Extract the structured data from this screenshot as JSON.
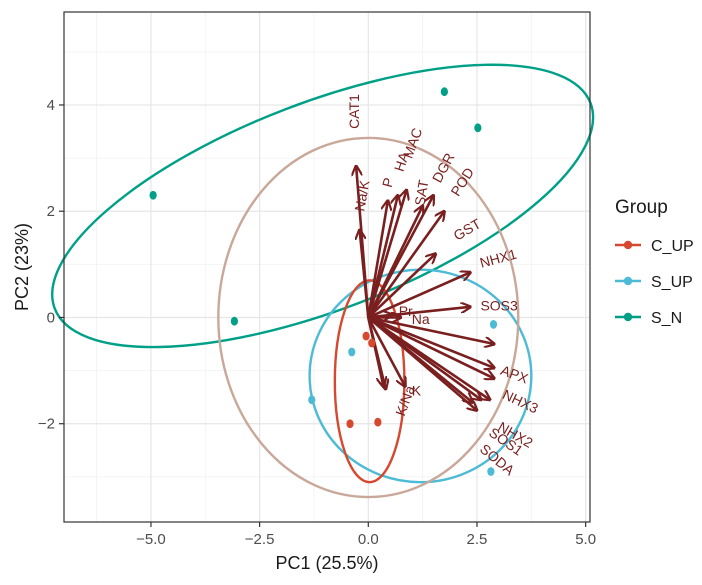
{
  "chart_data": {
    "type": "scatter",
    "xlabel": "PC1 (25.5%)",
    "ylabel": "PC2 (23%)",
    "xlim": [
      -7,
      5.1
    ],
    "ylim": [
      -3.85,
      5.75
    ],
    "x_ticks": [
      -5.0,
      -2.5,
      0.0,
      2.5,
      5.0
    ],
    "x_tick_labels": [
      "-5.0",
      "-2.5",
      "0.0",
      "2.5",
      "5.0"
    ],
    "y_ticks": [
      -2,
      0,
      2,
      4
    ],
    "y_tick_labels": [
      "-2",
      "0",
      "2",
      "4"
    ],
    "grid": true,
    "legend": {
      "title": "Group",
      "position": "right",
      "entries": [
        {
          "label": "C_UP",
          "color": "#D6492F"
        },
        {
          "label": "S_UP",
          "color": "#4DBBD5"
        },
        {
          "label": "S_N",
          "color": "#00A087"
        }
      ]
    },
    "series": [
      {
        "name": "C_UP",
        "color": "#D6492F",
        "points": [
          [
            -0.05,
            -0.35
          ],
          [
            0.08,
            -0.48
          ],
          [
            -0.42,
            -2.0
          ],
          [
            0.22,
            -1.97
          ]
        ]
      },
      {
        "name": "S_UP",
        "color": "#4DBBD5",
        "points": [
          [
            -0.38,
            -0.65
          ],
          [
            -1.3,
            -1.55
          ],
          [
            2.88,
            -0.13
          ],
          [
            2.82,
            -2.9
          ]
        ]
      },
      {
        "name": "S_N",
        "color": "#00A087",
        "points": [
          [
            -4.95,
            2.3
          ],
          [
            -3.08,
            -0.07
          ],
          [
            1.75,
            4.25
          ],
          [
            2.52,
            3.57
          ]
        ]
      }
    ],
    "ellipses": [
      {
        "group": "S_N",
        "color": "#00A087",
        "cx": -1.05,
        "cy": 2.1,
        "rx": 6.6,
        "ry": 1.95,
        "angle_deg": 21
      },
      {
        "group": "S_UP",
        "color": "#4DBBD5",
        "cx": 1.2,
        "cy": -1.1,
        "rx": 2.55,
        "ry": 2.0,
        "angle_deg": 0
      },
      {
        "group": "C_UP",
        "color": "#D6492F",
        "cx": 0.03,
        "cy": -1.2,
        "rx": 0.8,
        "ry": 1.9,
        "angle_deg": 0
      },
      {
        "group": "correlation circle",
        "color": "#C9A89A",
        "cx": 0.0,
        "cy": 0.0,
        "rx": 3.45,
        "ry": 3.38,
        "angle_deg": 0
      }
    ],
    "loadings": [
      {
        "label": "CAT1",
        "x": -0.28,
        "y": 2.85,
        "lx": -0.3,
        "ly": 3.55,
        "rot": 90
      },
      {
        "label": "Na/K",
        "x": -0.2,
        "y": 1.65,
        "lx": -0.18,
        "ly": 2.0,
        "rot": 80
      },
      {
        "label": "P",
        "x": 0.45,
        "y": 2.2,
        "lx": 0.45,
        "ly": 2.45,
        "rot": 75
      },
      {
        "label": "HA",
        "x": 0.68,
        "y": 2.3,
        "lx": 0.72,
        "ly": 2.75,
        "rot": 72
      },
      {
        "label": "MAC",
        "x": 0.88,
        "y": 2.4,
        "lx": 0.92,
        "ly": 3.0,
        "rot": 70
      },
      {
        "label": "DGR",
        "x": 1.5,
        "y": 2.3,
        "lx": 1.58,
        "ly": 2.55,
        "rot": 62
      },
      {
        "label": "POD",
        "x": 1.75,
        "y": 2.0,
        "lx": 2.0,
        "ly": 2.3,
        "rot": 58
      },
      {
        "label": "SAT",
        "x": 1.25,
        "y": 2.1,
        "lx": 1.2,
        "ly": 2.1,
        "rot": 80
      },
      {
        "label": "GST",
        "x": 1.55,
        "y": 1.2,
        "lx": 2.0,
        "ly": 1.5,
        "rot": 30
      },
      {
        "label": "NHX1",
        "x": 2.35,
        "y": 0.85,
        "lx": 2.58,
        "ly": 1.0,
        "rot": 15
      },
      {
        "label": "SOS3",
        "x": 2.35,
        "y": 0.2,
        "lx": 2.58,
        "ly": 0.2,
        "rot": 0
      },
      {
        "label": "Pr",
        "x": 0.55,
        "y": 0.05,
        "lx": 0.7,
        "ly": 0.1,
        "rot": 0
      },
      {
        "label": "Na",
        "x": 0.75,
        "y": 0.0,
        "lx": 1.0,
        "ly": -0.05,
        "rot": 0
      },
      {
        "label": "APX",
        "x": 2.9,
        "y": -0.95,
        "lx": 3.05,
        "ly": -1.0,
        "rot": -20
      },
      {
        "label": "NHX3",
        "x": 2.9,
        "y": -1.15,
        "lx": 3.1,
        "ly": -1.45,
        "rot": -25
      },
      {
        "label": "NHX2",
        "x": 2.8,
        "y": -1.55,
        "lx": 3.0,
        "ly": -2.05,
        "rot": -30
      },
      {
        "label": "SOS1",
        "x": 2.6,
        "y": -1.55,
        "lx": 2.8,
        "ly": -2.15,
        "rot": -35
      },
      {
        "label": "SODA",
        "x": 2.4,
        "y": -1.6,
        "lx": 2.6,
        "ly": -2.45,
        "rot": -40
      },
      {
        "label": "K",
        "x": 0.85,
        "y": -1.3,
        "lx": 1.0,
        "ly": -1.4,
        "rot": 0
      },
      {
        "label": "K/Na",
        "x": 0.35,
        "y": -1.3,
        "lx": 0.75,
        "ly": -1.85,
        "rot": 70
      }
    ],
    "extra_arrows": [
      {
        "x": 0.4,
        "y": -1.35
      },
      {
        "x": 2.5,
        "y": -1.75
      },
      {
        "x": 2.9,
        "y": -0.5
      }
    ],
    "arrow_color": "#7A1F1F"
  }
}
